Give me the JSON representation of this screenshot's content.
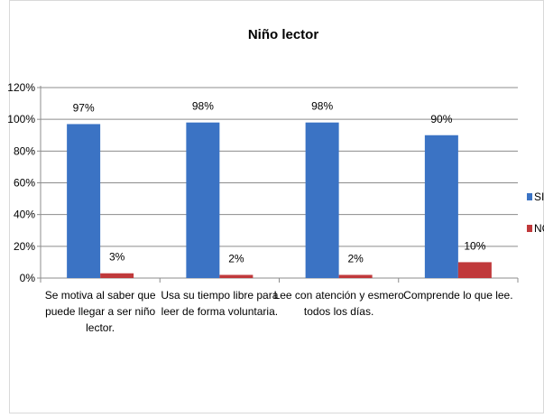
{
  "chart_data": {
    "type": "bar",
    "title": "Niño lector",
    "categories": [
      [
        "Se motiva al saber que",
        "puede llegar a ser niño",
        "lector."
      ],
      [
        "Usa su tiempo libre para",
        "leer de forma voluntaria."
      ],
      [
        "Lee con atención y esmero",
        "todos los días."
      ],
      [
        "Comprende lo que lee."
      ]
    ],
    "series": [
      {
        "name": "SI",
        "color": "#3b73c4",
        "values": [
          97,
          98,
          98,
          90
        ],
        "labels": [
          "97%",
          "98%",
          "98%",
          "90%"
        ]
      },
      {
        "name": "NC",
        "color": "#c0393b",
        "values": [
          3,
          2,
          2,
          10
        ],
        "labels": [
          "3%",
          "2%",
          "2%",
          "10%"
        ]
      }
    ],
    "ylim": [
      0,
      120
    ],
    "yticks": [
      "0%",
      "20%",
      "40%",
      "60%",
      "80%",
      "100%",
      "120%"
    ],
    "grid": true,
    "legend_position": "right"
  }
}
